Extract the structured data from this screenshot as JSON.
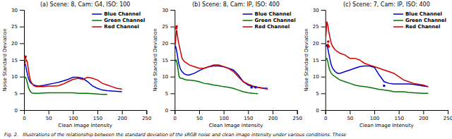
{
  "chart_data": [
    {
      "type": "line",
      "title": "(a) Scene: 8, Cam: G4, ISO: 100",
      "xlabel": "Clean Image Intensity",
      "ylabel": "Noise Standard Deviation",
      "xlim": [
        0,
        250
      ],
      "ylim": [
        0,
        30
      ],
      "xticks": [
        0,
        50,
        100,
        150,
        200,
        250
      ],
      "yticks": [
        0,
        5,
        10,
        15,
        20,
        25,
        30
      ],
      "legend": "upper right",
      "annotations": [
        "Fig. 2.   Illustrations of the relationship between the standard deviation of the sRGB noise and clean image intensity under various conditions. These"
      ],
      "series": [
        {
          "name": "Blue Channel",
          "type": "line",
          "color": "#0000cc",
          "x": [
            1,
            2,
            3,
            5,
            7,
            9,
            12,
            15,
            20,
            25,
            30,
            40,
            50,
            60,
            70,
            80,
            90,
            100,
            110,
            120,
            130,
            140,
            150,
            160,
            170,
            180,
            190,
            200
          ],
          "values": [
            13.5,
            13.8,
            13.5,
            12.0,
            10.8,
            9.5,
            8.5,
            8.0,
            7.5,
            7.3,
            7.2,
            7.4,
            7.7,
            8.0,
            8.3,
            8.7,
            9.2,
            9.8,
            9.8,
            9.5,
            8.5,
            7.2,
            6.5,
            6.0,
            5.8,
            5.7,
            5.6,
            5.5
          ]
        },
        {
          "name": "Green Channel",
          "type": "line",
          "color": "#007700",
          "x": [
            1,
            2,
            3,
            5,
            7,
            9,
            12,
            15,
            20,
            25,
            30,
            40,
            50,
            60,
            70,
            80,
            90,
            100,
            110,
            120,
            130,
            140,
            150,
            160,
            170
          ],
          "values": [
            9.5,
            9.8,
            9.8,
            9.2,
            8.0,
            6.8,
            5.8,
            5.2,
            5.0,
            5.0,
            5.0,
            5.1,
            5.2,
            5.2,
            5.2,
            5.2,
            5.2,
            5.2,
            5.0,
            5.0,
            5.0,
            4.9,
            4.8,
            4.7,
            4.7
          ]
        },
        {
          "name": "Red Channel",
          "type": "line",
          "color": "#cc0000",
          "x": [
            1,
            2,
            3,
            5,
            7,
            9,
            12,
            15,
            20,
            25,
            30,
            40,
            50,
            60,
            70,
            80,
            90,
            100,
            110,
            120,
            130,
            140,
            150,
            160,
            170,
            180,
            190,
            200
          ],
          "values": [
            13.8,
            14.2,
            14.8,
            15.0,
            14.2,
            12.0,
            9.5,
            8.2,
            7.3,
            7.0,
            7.0,
            7.0,
            7.2,
            7.2,
            7.3,
            7.8,
            8.5,
            9.2,
            9.5,
            9.2,
            9.8,
            9.5,
            9.0,
            8.0,
            7.5,
            7.0,
            6.5,
            6.3
          ]
        },
        {
          "type": "scatter",
          "color": "#cc0000",
          "x": [
            2,
            3
          ],
          "values": [
            15.5,
            16.0
          ]
        }
      ]
    },
    {
      "type": "line",
      "title": "(b) Scene: 8, Cam: IP, ISO: 400",
      "xlabel": "Clean Image Intensity",
      "ylabel": "Noise Standard Deviation",
      "xlim": [
        0,
        250
      ],
      "ylim": [
        0,
        30
      ],
      "xticks": [
        0,
        50,
        100,
        150,
        200,
        250
      ],
      "yticks": [
        0,
        5,
        10,
        15,
        20,
        25,
        30
      ],
      "legend": "upper right",
      "series": [
        {
          "name": "Blue Channel",
          "type": "line",
          "color": "#0000cc",
          "x": [
            1,
            2,
            3,
            5,
            7,
            9,
            12,
            15,
            20,
            25,
            30,
            40,
            50,
            60,
            70,
            80,
            90,
            100,
            110,
            120,
            130,
            140,
            150,
            160,
            170,
            180,
            190
          ],
          "values": [
            18.5,
            19.0,
            18.5,
            17.0,
            15.0,
            13.5,
            12.2,
            11.5,
            10.8,
            10.5,
            10.5,
            11.0,
            11.8,
            12.5,
            13.0,
            13.2,
            13.2,
            13.0,
            12.5,
            12.0,
            10.5,
            8.5,
            7.5,
            7.0,
            6.8,
            6.6,
            6.5
          ]
        },
        {
          "name": "Green Channel",
          "type": "line",
          "color": "#007700",
          "x": [
            1,
            2,
            3,
            5,
            7,
            9,
            12,
            15,
            20,
            25,
            30,
            40,
            50,
            60,
            70,
            80,
            90,
            100,
            110,
            120,
            130,
            140,
            150,
            160,
            170
          ],
          "values": [
            14.5,
            15.0,
            15.0,
            14.0,
            12.0,
            10.0,
            9.5,
            9.5,
            9.2,
            9.0,
            9.0,
            8.8,
            8.5,
            8.0,
            7.8,
            7.5,
            7.3,
            7.0,
            6.8,
            6.5,
            6.0,
            5.5,
            5.2,
            5.0,
            4.9
          ]
        },
        {
          "name": "Red Channel",
          "type": "line",
          "color": "#cc0000",
          "x": [
            1,
            2,
            3,
            4,
            5,
            7,
            9,
            12,
            15,
            20,
            25,
            30,
            40,
            50,
            60,
            70,
            80,
            90,
            100,
            110,
            120,
            130,
            140,
            150,
            160,
            170,
            180,
            190
          ],
          "values": [
            19.5,
            21.0,
            23.0,
            24.0,
            23.0,
            21.0,
            19.5,
            17.5,
            15.5,
            14.5,
            14.0,
            13.5,
            13.0,
            12.5,
            12.5,
            13.0,
            13.5,
            13.5,
            13.0,
            12.5,
            11.5,
            10.0,
            8.5,
            7.8,
            7.2,
            6.8,
            6.5,
            6.3
          ]
        },
        {
          "type": "scatter",
          "color": "#cc0000",
          "x": [
            3,
            4
          ],
          "values": [
            24.5,
            25.0
          ]
        },
        {
          "type": "scatter",
          "color": "#0000cc",
          "x": [
            157,
            165
          ],
          "values": [
            6.8,
            6.8
          ]
        }
      ]
    },
    {
      "type": "line",
      "title": "(c) Scene: 7, Cam: IP, ISO: 400",
      "xlabel": "Clean Image Intensity",
      "ylabel": "Noise Standard Deviation",
      "xlim": [
        0,
        250
      ],
      "ylim": [
        0,
        30
      ],
      "xticks": [
        0,
        50,
        100,
        150,
        200,
        250
      ],
      "yticks": [
        0,
        5,
        10,
        15,
        20,
        25,
        30
      ],
      "legend": "upper right",
      "series": [
        {
          "name": "Blue Channel",
          "type": "line",
          "color": "#0000cc",
          "x": [
            1,
            2,
            3,
            5,
            7,
            9,
            12,
            15,
            20,
            25,
            30,
            40,
            50,
            60,
            70,
            80,
            90,
            100,
            110,
            120,
            130,
            140,
            150,
            160,
            170,
            180,
            200,
            210
          ],
          "values": [
            19.0,
            19.5,
            19.5,
            18.5,
            17.0,
            15.5,
            13.5,
            12.5,
            11.5,
            11.0,
            11.0,
            11.5,
            12.0,
            12.5,
            13.0,
            13.2,
            13.2,
            12.8,
            10.5,
            8.5,
            8.0,
            7.8,
            7.8,
            7.8,
            7.8,
            7.7,
            7.2,
            7.0
          ]
        },
        {
          "name": "Green Channel",
          "type": "line",
          "color": "#007700",
          "x": [
            1,
            2,
            3,
            5,
            7,
            9,
            12,
            15,
            20,
            25,
            30,
            40,
            50,
            60,
            70,
            80,
            90,
            100,
            110,
            120,
            130,
            140,
            150,
            160,
            170,
            180,
            200,
            210
          ],
          "values": [
            15.0,
            15.5,
            15.5,
            14.5,
            13.0,
            12.0,
            11.0,
            10.5,
            10.0,
            9.5,
            9.0,
            8.5,
            8.0,
            7.5,
            7.2,
            7.0,
            6.8,
            6.5,
            6.2,
            6.0,
            5.8,
            5.5,
            5.5,
            5.5,
            5.3,
            5.2,
            5.0,
            5.0
          ]
        },
        {
          "name": "Red Channel",
          "type": "line",
          "color": "#cc0000",
          "x": [
            1,
            2,
            3,
            4,
            5,
            7,
            9,
            12,
            15,
            20,
            25,
            30,
            40,
            50,
            60,
            70,
            80,
            90,
            100,
            110,
            120,
            130,
            140,
            150,
            160,
            170,
            180,
            200,
            210
          ],
          "values": [
            22.0,
            24.0,
            26.5,
            26.0,
            25.5,
            23.5,
            22.0,
            20.0,
            19.0,
            18.0,
            17.5,
            17.0,
            16.5,
            15.5,
            15.5,
            15.0,
            14.0,
            13.5,
            13.0,
            12.5,
            12.0,
            11.5,
            11.0,
            10.0,
            9.0,
            8.5,
            8.0,
            7.5,
            7.0
          ]
        },
        {
          "type": "scatter",
          "color": "#cc0000",
          "x": [
            5,
            6,
            7
          ],
          "values": [
            19.5,
            20.5,
            19.0
          ]
        },
        {
          "type": "scatter",
          "color": "#0000cc",
          "x": [
            120
          ],
          "values": [
            7.3
          ]
        }
      ]
    }
  ]
}
